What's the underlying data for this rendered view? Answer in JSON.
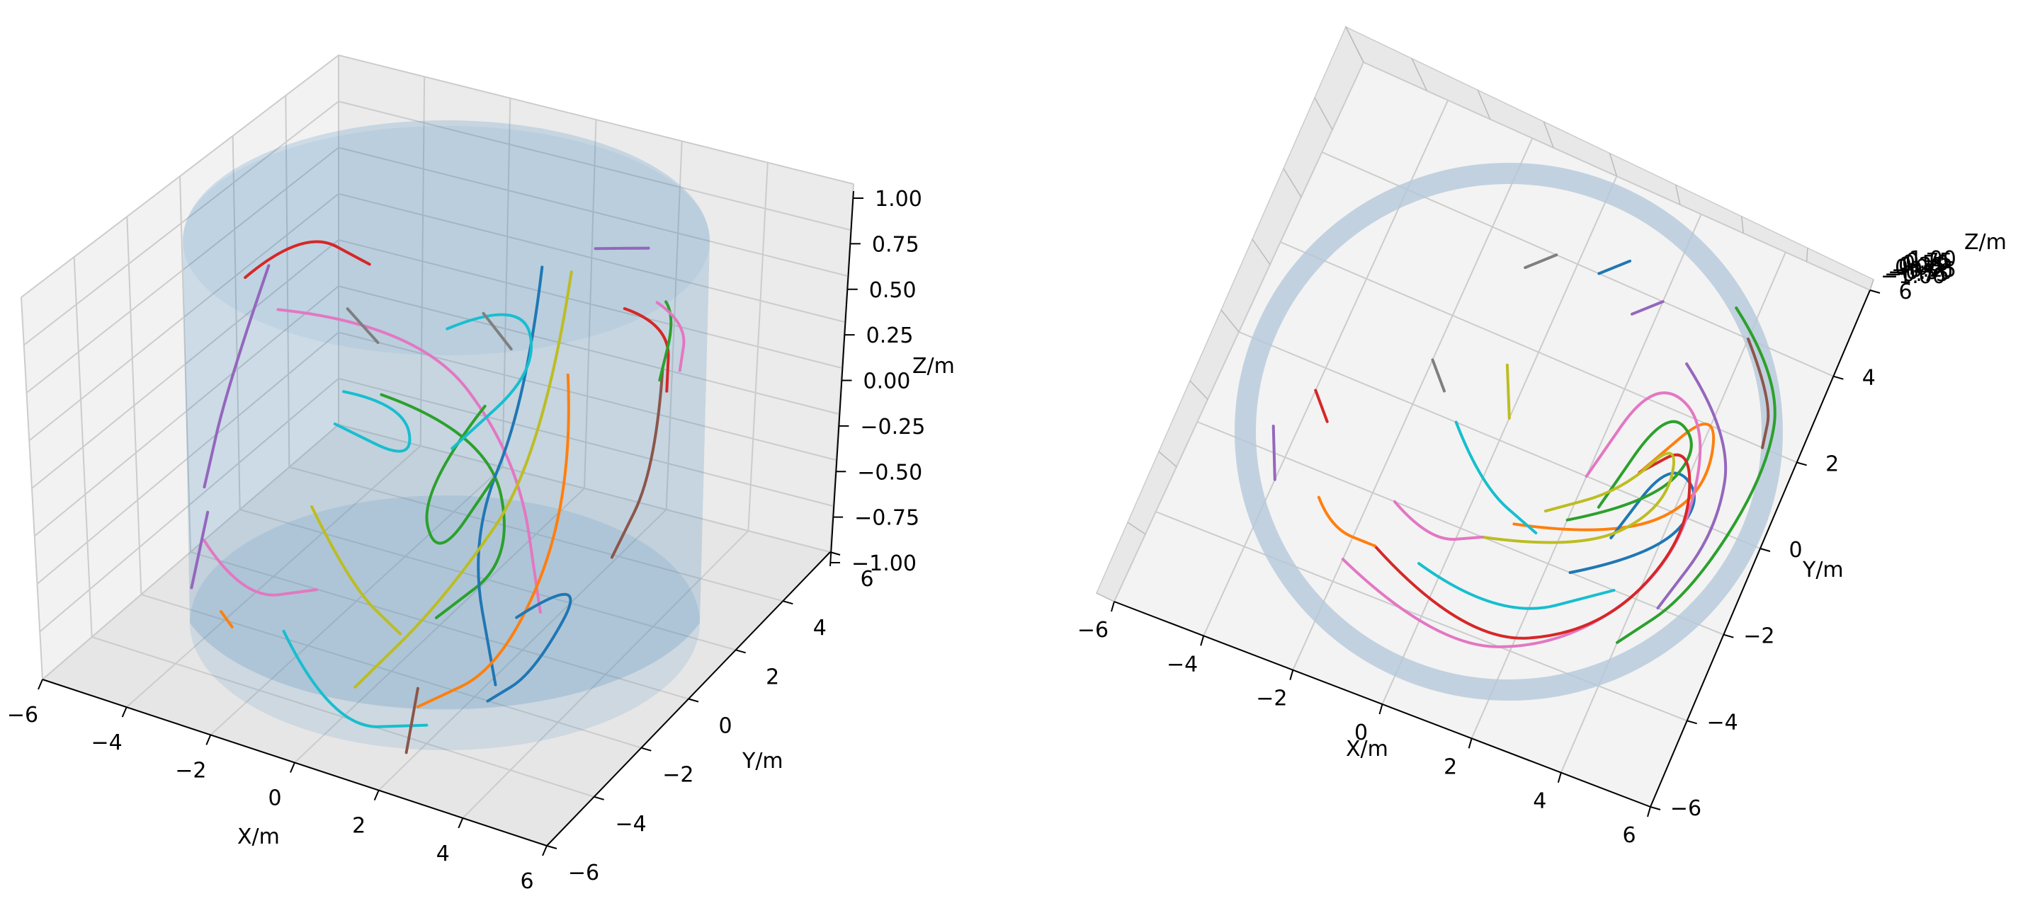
{
  "chart_data": [
    {
      "type": "3d-line",
      "title": "",
      "xlabel": "X/m",
      "ylabel": "Y/m",
      "zlabel": "Z/m",
      "xlim": [
        -6,
        6
      ],
      "ylim": [
        -6,
        6
      ],
      "zlim": [
        -1,
        1
      ],
      "x_ticks": [
        "−6",
        "−4",
        "−2",
        "0",
        "2",
        "4",
        "6"
      ],
      "y_ticks": [
        "−6",
        "−4",
        "−2",
        "0",
        "2",
        "4",
        "6"
      ],
      "z_ticks": [
        "−1.00",
        "−0.75",
        "−0.50",
        "−0.25",
        "0.00",
        "0.25",
        "0.50",
        "0.75",
        "1.00"
      ],
      "grid": true,
      "surface": {
        "shape": "cylinder",
        "radius": 6,
        "z_range": [
          -1,
          1
        ],
        "color": "#1f77b4",
        "alpha": 0.2
      },
      "view": "perspective"
    },
    {
      "type": "3d-line",
      "title": "",
      "xlabel": "X/m",
      "ylabel": "Y/m",
      "zlabel": "Z/m",
      "xlim": [
        -6,
        6
      ],
      "ylim": [
        -6,
        6
      ],
      "zlim": [
        -1,
        1
      ],
      "x_ticks": [
        "−6",
        "−4",
        "−2",
        "0",
        "2",
        "4",
        "6"
      ],
      "y_ticks": [
        "−6",
        "−4",
        "−2",
        "0",
        "2",
        "4",
        "6"
      ],
      "grid": true,
      "surface": {
        "shape": "cylinder",
        "radius": 6,
        "z_range": [
          -1,
          1
        ],
        "color": "#1f77b4",
        "alpha": 0.2
      },
      "view": "top"
    }
  ],
  "palette": [
    "#1f77b4",
    "#ff7f0e",
    "#2ca02c",
    "#d62728",
    "#9467bd",
    "#8c564b",
    "#e377c2",
    "#7f7f7f",
    "#bcbd22",
    "#17becf"
  ],
  "trajectories": [
    {
      "color": "#d62728",
      "pts": [
        [
          -5.0,
          0.5,
          0.5
        ],
        [
          -4.2,
          1.5,
          0.7
        ],
        [
          -3.0,
          2.2,
          0.5
        ]
      ]
    },
    {
      "color": "#e377c2",
      "pts": [
        [
          -4.5,
          1.0,
          0.3
        ],
        [
          -2.0,
          2.5,
          0.2
        ],
        [
          1.0,
          1.5,
          -0.2
        ],
        [
          3.0,
          -1.0,
          -0.6
        ]
      ]
    },
    {
      "color": "#9467bd",
      "pts": [
        [
          -5.2,
          1.8,
          0.4
        ],
        [
          -5.4,
          0.5,
          -0.1
        ],
        [
          -5.2,
          -0.8,
          -0.5
        ]
      ]
    },
    {
      "color": "#7f7f7f",
      "pts": [
        [
          -4.0,
          3.0,
          0.1
        ],
        [
          -3.5,
          3.4,
          -0.1
        ]
      ]
    },
    {
      "color": "#17becf",
      "pts": [
        [
          -3.5,
          2.0,
          -0.2
        ],
        [
          -2.5,
          2.8,
          -0.3
        ],
        [
          -1.5,
          1.5,
          -0.4
        ],
        [
          -3.0,
          0.8,
          -0.2
        ]
      ]
    },
    {
      "color": "#2ca02c",
      "pts": [
        [
          -2.0,
          1.0,
          0.0
        ],
        [
          0.0,
          2.0,
          -0.2
        ],
        [
          1.5,
          0.5,
          -0.6
        ],
        [
          0.5,
          -1.0,
          -0.8
        ]
      ]
    },
    {
      "color": "#1f77b4",
      "pts": [
        [
          1.0,
          2.5,
          0.7
        ],
        [
          1.5,
          1.0,
          0.2
        ],
        [
          1.0,
          -0.5,
          -0.4
        ],
        [
          2.5,
          -2.0,
          -0.9
        ]
      ]
    },
    {
      "color": "#ff7f0e",
      "pts": [
        [
          2.5,
          1.0,
          0.4
        ],
        [
          3.5,
          -0.5,
          0.0
        ],
        [
          3.0,
          -2.5,
          -0.7
        ],
        [
          1.5,
          -3.5,
          -0.9
        ]
      ]
    },
    {
      "color": "#bcbd22",
      "pts": [
        [
          2.0,
          2.0,
          0.8
        ],
        [
          2.2,
          0.5,
          0.0
        ],
        [
          1.0,
          -1.5,
          -0.6
        ],
        [
          0.0,
          -3.5,
          -0.9
        ]
      ]
    },
    {
      "color": "#8c564b",
      "pts": [
        [
          4.5,
          1.5,
          0.5
        ],
        [
          5.2,
          0.0,
          0.2
        ],
        [
          5.0,
          -1.5,
          -0.1
        ]
      ]
    },
    {
      "color": "#d62728",
      "pts": [
        [
          3.0,
          2.5,
          0.6
        ],
        [
          4.5,
          1.8,
          0.7
        ],
        [
          5.0,
          0.8,
          0.5
        ]
      ]
    },
    {
      "color": "#2ca02c",
      "pts": [
        [
          4.0,
          2.5,
          0.7
        ],
        [
          4.8,
          1.5,
          0.8
        ],
        [
          5.0,
          0.5,
          0.6
        ]
      ]
    },
    {
      "color": "#e377c2",
      "pts": [
        [
          3.5,
          3.0,
          0.6
        ],
        [
          4.8,
          2.0,
          0.7
        ],
        [
          5.2,
          1.0,
          0.6
        ]
      ]
    },
    {
      "color": "#9467bd",
      "pts": [
        [
          2.0,
          3.0,
          0.8
        ],
        [
          3.0,
          3.5,
          0.8
        ]
      ]
    },
    {
      "color": "#1f77b4",
      "pts": [
        [
          3.0,
          -2.0,
          -0.5
        ],
        [
          4.5,
          -1.5,
          -0.2
        ],
        [
          4.0,
          -3.0,
          -0.6
        ],
        [
          3.0,
          -3.2,
          -0.8
        ]
      ]
    },
    {
      "color": "#17becf",
      "pts": [
        [
          -2.0,
          -3.0,
          -0.8
        ],
        [
          0.0,
          -4.5,
          -1.0
        ],
        [
          2.0,
          -4.0,
          -0.9
        ]
      ]
    },
    {
      "color": "#ff7f0e",
      "pts": [
        [
          -3.5,
          -3.0,
          -0.8
        ],
        [
          -3.0,
          -3.4,
          -0.8
        ]
      ]
    },
    {
      "color": "#e377c2",
      "pts": [
        [
          -4.5,
          -2.0,
          -0.6
        ],
        [
          -3.0,
          -3.0,
          -0.7
        ],
        [
          -1.5,
          -2.5,
          -0.6
        ]
      ]
    },
    {
      "color": "#9467bd",
      "pts": [
        [
          -5.0,
          -1.0,
          -0.6
        ],
        [
          -4.5,
          -2.5,
          -0.8
        ]
      ]
    },
    {
      "color": "#8c564b",
      "pts": [
        [
          1.5,
          -3.5,
          -0.8
        ],
        [
          1.8,
          -4.5,
          -1.0
        ]
      ]
    },
    {
      "color": "#2ca02c",
      "pts": [
        [
          0.5,
          1.0,
          0.1
        ],
        [
          -0.5,
          0.0,
          -0.3
        ],
        [
          0.5,
          -1.0,
          -0.5
        ],
        [
          1.0,
          0.5,
          -0.2
        ]
      ]
    },
    {
      "color": "#17becf",
      "pts": [
        [
          -1.0,
          2.0,
          0.3
        ],
        [
          0.5,
          2.5,
          0.5
        ],
        [
          1.5,
          1.5,
          0.3
        ],
        [
          0.0,
          0.5,
          -0.1
        ]
      ]
    },
    {
      "color": "#bcbd22",
      "pts": [
        [
          -2.5,
          -1.0,
          -0.4
        ],
        [
          -1.0,
          -2.0,
          -0.6
        ],
        [
          0.5,
          -2.5,
          -0.7
        ]
      ]
    },
    {
      "color": "#7f7f7f",
      "pts": [
        [
          -1.0,
          3.5,
          0.2
        ],
        [
          -0.5,
          3.8,
          0.0
        ]
      ]
    }
  ],
  "trajectories_top": [
    {
      "color": "#ff7f0e",
      "pts": [
        [
          1.0,
          -1.5
        ],
        [
          3.0,
          -1.0
        ],
        [
          4.5,
          0.5
        ],
        [
          4.0,
          2.5
        ],
        [
          3.0,
          0.5
        ]
      ]
    },
    {
      "color": "#1f77b4",
      "pts": [
        [
          2.5,
          -2.0
        ],
        [
          4.0,
          -1.0
        ],
        [
          4.5,
          0.5
        ],
        [
          3.5,
          1.0
        ],
        [
          3.0,
          -1.0
        ]
      ]
    },
    {
      "color": "#2ca02c",
      "pts": [
        [
          2.0,
          -1.0
        ],
        [
          3.5,
          0.0
        ],
        [
          4.0,
          1.5
        ],
        [
          3.0,
          2.0
        ],
        [
          2.5,
          -0.5
        ]
      ]
    },
    {
      "color": "#e377c2",
      "pts": [
        [
          -2.0,
          -3.5
        ],
        [
          0.5,
          -4.5
        ],
        [
          3.0,
          -3.5
        ],
        [
          4.5,
          -1.0
        ],
        [
          4.0,
          2.0
        ],
        [
          2.5,
          2.5
        ],
        [
          2.0,
          0.0
        ]
      ]
    },
    {
      "color": "#d62728",
      "pts": [
        [
          -1.5,
          -3.0
        ],
        [
          1.0,
          -4.2
        ],
        [
          3.5,
          -3.0
        ],
        [
          4.5,
          -0.5
        ],
        [
          3.8,
          1.5
        ],
        [
          3.0,
          0.5
        ]
      ]
    },
    {
      "color": "#bcbd22",
      "pts": [
        [
          0.5,
          -2.0
        ],
        [
          2.5,
          -1.5
        ],
        [
          3.8,
          0.0
        ],
        [
          3.5,
          1.5
        ],
        [
          2.8,
          0.0
        ],
        [
          1.5,
          -1.0
        ]
      ]
    },
    {
      "color": "#17becf",
      "pts": [
        [
          -0.5,
          -3.0
        ],
        [
          1.5,
          -3.5
        ],
        [
          3.5,
          -2.0
        ]
      ]
    },
    {
      "color": "#9467bd",
      "pts": [
        [
          3.0,
          3.0
        ],
        [
          4.5,
          2.0
        ],
        [
          5.0,
          0.0
        ],
        [
          4.5,
          -2.0
        ]
      ]
    },
    {
      "color": "#8c564b",
      "pts": [
        [
          4.0,
          4.0
        ],
        [
          5.0,
          3.0
        ],
        [
          5.2,
          2.0
        ]
      ]
    },
    {
      "color": "#2ca02c",
      "pts": [
        [
          3.5,
          4.5
        ],
        [
          5.0,
          3.5
        ],
        [
          5.5,
          1.5
        ],
        [
          5.0,
          -1.5
        ],
        [
          4.0,
          -3.0
        ]
      ]
    },
    {
      "color": "#17becf",
      "pts": [
        [
          -1.0,
          0.0
        ],
        [
          0.0,
          -1.0
        ],
        [
          1.5,
          -1.5
        ]
      ]
    },
    {
      "color": "#d62728",
      "pts": [
        [
          -4.0,
          -0.5
        ],
        [
          -3.5,
          -1.0
        ]
      ]
    },
    {
      "color": "#7f7f7f",
      "pts": [
        [
          -1.0,
          3.5
        ],
        [
          -0.5,
          4.0
        ]
      ]
    },
    {
      "color": "#1f77b4",
      "pts": [
        [
          0.5,
          4.0
        ],
        [
          1.0,
          4.5
        ]
      ]
    },
    {
      "color": "#9467bd",
      "pts": [
        [
          1.5,
          3.5
        ],
        [
          2.0,
          4.0
        ]
      ]
    },
    {
      "color": "#e377c2",
      "pts": [
        [
          -1.5,
          -2.0
        ],
        [
          -0.5,
          -2.5
        ],
        [
          0.5,
          -2.0
        ]
      ]
    },
    {
      "color": "#ff7f0e",
      "pts": [
        [
          -3.0,
          -2.5
        ],
        [
          -2.5,
          -3.0
        ],
        [
          -1.5,
          -3.0
        ]
      ]
    },
    {
      "color": "#bcbd22",
      "pts": [
        [
          -0.5,
          1.5
        ],
        [
          0.0,
          0.5
        ]
      ]
    },
    {
      "color": "#7f7f7f",
      "pts": [
        [
          -2.0,
          1.0
        ],
        [
          -1.5,
          0.5
        ]
      ]
    },
    {
      "color": "#9467bd",
      "pts": [
        [
          -4.5,
          -1.5
        ],
        [
          -4.0,
          -2.5
        ]
      ]
    }
  ]
}
